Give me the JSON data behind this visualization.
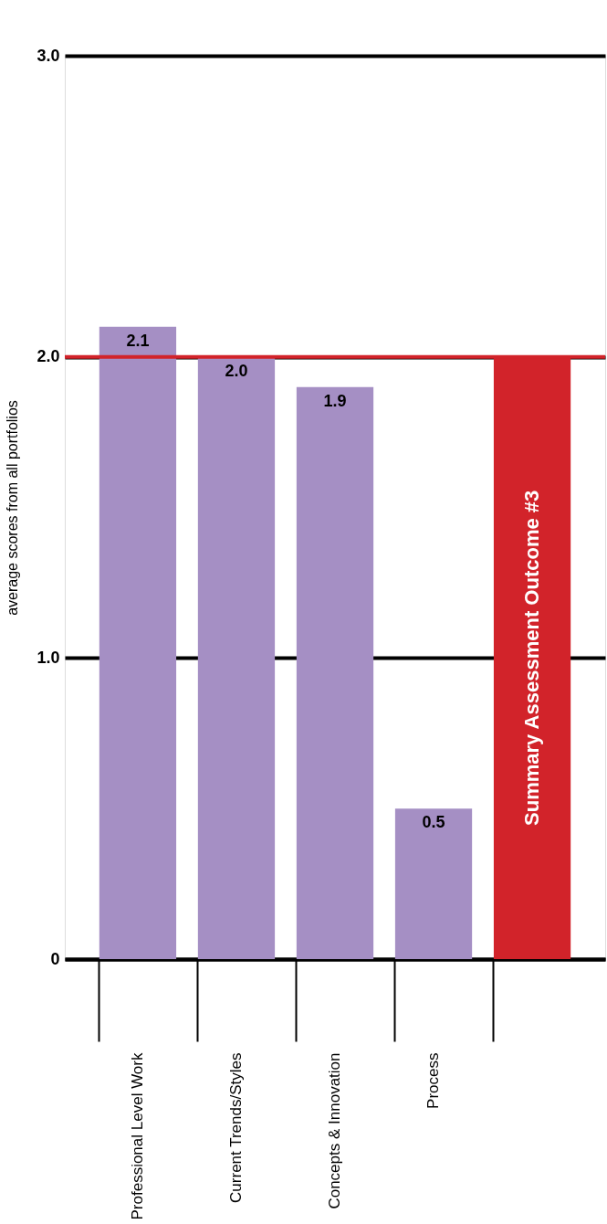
{
  "chart_data": {
    "type": "bar",
    "categories": [
      "Professional Level Work",
      "Current Trends/Styles",
      "Concepts & Innovation",
      "Process",
      null
    ],
    "values": [
      2.1,
      2.0,
      1.9,
      0.5,
      2.0
    ],
    "colors": [
      "#a58fc4",
      "#a58fc4",
      "#a58fc4",
      "#a58fc4",
      "#d2232a"
    ],
    "value_labels": [
      "2.1",
      "2.0",
      "1.9",
      "0.5",
      null
    ],
    "ylabel": "average scores from all portfolios",
    "ylim": [
      0,
      3
    ],
    "yticks": [
      {
        "value": 0,
        "label": "0"
      },
      {
        "value": 1,
        "label": "1.0"
      },
      {
        "value": 2,
        "label": "2.0"
      },
      {
        "value": 3,
        "label": "3.0"
      }
    ],
    "grid": "y",
    "ref_lines": [
      {
        "axis": "y",
        "value": 2,
        "color": "#d2232a"
      }
    ],
    "annotations": [
      "Summary Assessment Outcome #3"
    ]
  }
}
